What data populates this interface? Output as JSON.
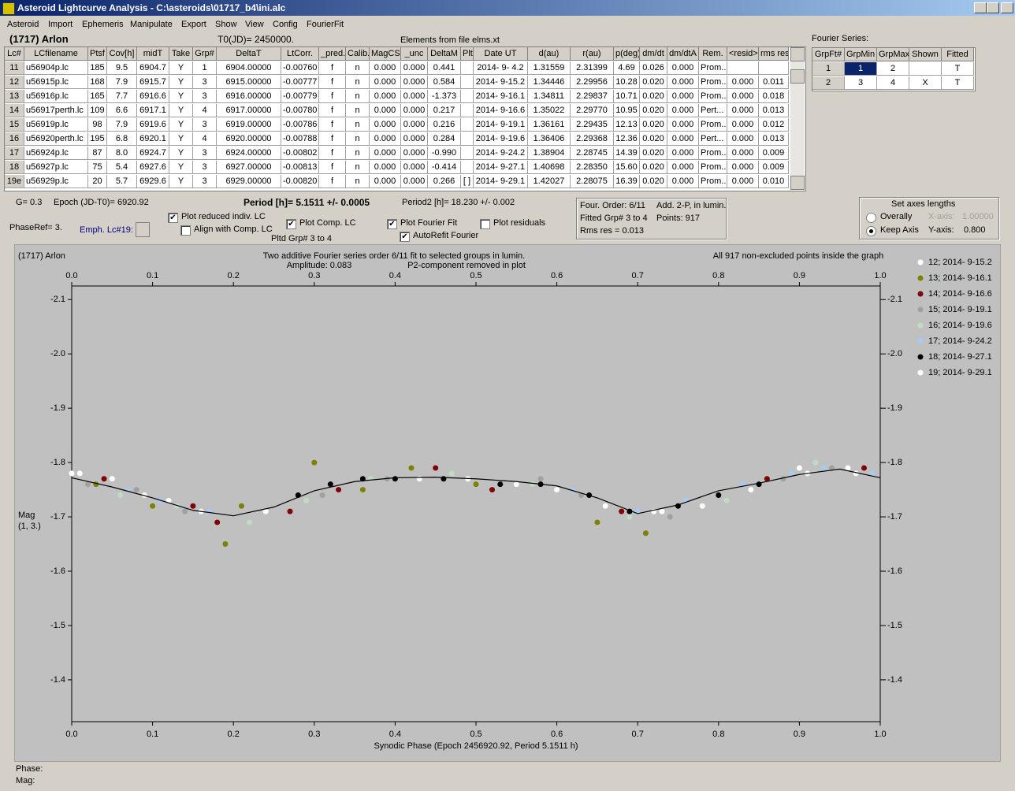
{
  "window": {
    "title": "Asteroid Lightcurve Analysis - C:\\asteroids\\01717_b4\\ini.alc",
    "menu": [
      "Asteroid",
      "Import",
      "Ephemeris",
      "Manipulate",
      "Export",
      "Show",
      "View",
      "Config",
      "FourierFit"
    ]
  },
  "header": {
    "object": "(1717) Arlon",
    "t0": "T0(JD)= 2450000.",
    "elements": "Elements from file elms.xt"
  },
  "lc_table": {
    "columns": [
      "Lc#",
      "LCfilename",
      "Ptsf",
      "Cov[h]",
      "midT",
      "Take",
      "Grp#",
      "DeltaT",
      "LtCorr.",
      "_pred.",
      "Calib.",
      "MagCS",
      "_unc",
      "DeltaM",
      "Plt",
      "Date UT",
      "d(au)",
      "r(au)",
      "p(deg)",
      "dm/dt",
      "dm/dtA",
      "Rem.",
      "<resid>",
      "rms res"
    ],
    "rows": [
      [
        "11",
        "u56904p.lc",
        "185",
        "9.5",
        "6904.7",
        "Y",
        "1",
        "6904.00000",
        "-0.00760",
        "f",
        "n",
        "0.000",
        "0.000",
        "0.441",
        null,
        "2014- 9- 4.2",
        "1.31559",
        "2.31399",
        "4.69",
        "0.026",
        "0.000",
        "Prom...",
        null,
        null
      ],
      [
        "12",
        "u56915p.lc",
        "168",
        "7.9",
        "6915.7",
        "Y",
        "3",
        "6915.00000",
        "-0.00777",
        "f",
        "n",
        "0.000",
        "0.000",
        "0.584",
        null,
        "2014- 9-15.2",
        "1.34446",
        "2.29956",
        "10.28",
        "0.020",
        "0.000",
        "Prom...",
        "0.000",
        "0.011"
      ],
      [
        "13",
        "u56916p.lc",
        "165",
        "7.7",
        "6916.6",
        "Y",
        "3",
        "6916.00000",
        "-0.00779",
        "f",
        "n",
        "0.000",
        "0.000",
        "-1.373",
        null,
        "2014- 9-16.1",
        "1.34811",
        "2.29837",
        "10.71",
        "0.020",
        "0.000",
        "Prom...",
        "0.000",
        "0.018"
      ],
      [
        "14",
        "u56917perth.lc",
        "109",
        "6.6",
        "6917.1",
        "Y",
        "4",
        "6917.00000",
        "-0.00780",
        "f",
        "n",
        "0.000",
        "0.000",
        "0.217",
        null,
        "2014- 9-16.6",
        "1.35022",
        "2.29770",
        "10.95",
        "0.020",
        "0.000",
        "Pert...",
        "0.000",
        "0.013"
      ],
      [
        "15",
        "u56919p.lc",
        "98",
        "7.9",
        "6919.6",
        "Y",
        "3",
        "6919.00000",
        "-0.00786",
        "f",
        "n",
        "0.000",
        "0.000",
        "0.216",
        null,
        "2014- 9-19.1",
        "1.36161",
        "2.29435",
        "12.13",
        "0.020",
        "0.000",
        "Prom...",
        "0.000",
        "0.012"
      ],
      [
        "16",
        "u56920perth.lc",
        "195",
        "6.8",
        "6920.1",
        "Y",
        "4",
        "6920.00000",
        "-0.00788",
        "f",
        "n",
        "0.000",
        "0.000",
        "0.284",
        null,
        "2014- 9-19.6",
        "1.36406",
        "2.29368",
        "12.36",
        "0.020",
        "0.000",
        "Pert...",
        "0.000",
        "0.013"
      ],
      [
        "17",
        "u56924p.lc",
        "87",
        "8.0",
        "6924.7",
        "Y",
        "3",
        "6924.00000",
        "-0.00802",
        "f",
        "n",
        "0.000",
        "0.000",
        "-0.990",
        null,
        "2014- 9-24.2",
        "1.38904",
        "2.28745",
        "14.39",
        "0.020",
        "0.000",
        "Prom...",
        "0.000",
        "0.009"
      ],
      [
        "18",
        "u56927p.lc",
        "75",
        "5.4",
        "6927.6",
        "Y",
        "3",
        "6927.00000",
        "-0.00813",
        "f",
        "n",
        "0.000",
        "0.000",
        "-0.414",
        null,
        "2014- 9-27.1",
        "1.40698",
        "2.28350",
        "15.60",
        "0.020",
        "0.000",
        "Prom...",
        "0.000",
        "0.009"
      ],
      [
        "19e",
        "u56929p.lc",
        "20",
        "5.7",
        "6929.6",
        "Y",
        "3",
        "6929.00000",
        "-0.00820",
        "f",
        "n",
        "0.000",
        "0.000",
        "0.266",
        "[ ]",
        "2014- 9-29.1",
        "1.42027",
        "2.28075",
        "16.39",
        "0.020",
        "0.000",
        "Prom...",
        "0.000",
        "0.010"
      ]
    ]
  },
  "fourier": {
    "label": "Fourier Series:",
    "columns": [
      "GrpFt#",
      "GrpMin",
      "GrpMax",
      "Shown",
      "Fitted"
    ],
    "rows": [
      [
        "1",
        "1",
        "2",
        null,
        "T"
      ],
      [
        "2",
        "3",
        "4",
        "X",
        "T"
      ]
    ]
  },
  "controls": {
    "g": "G= 0.3",
    "epoch": "Epoch (JD-T0)= 6920.92",
    "period": "Period [h]= 5.1511 +/- 0.0005",
    "period2": "Period2 [h]= 18.230 +/- 0.002",
    "phaseref": "PhaseRef= 3.",
    "emph": "Emph. Lc#19:",
    "pltd": "Pltd Grp#  3  to  4",
    "checkboxes": [
      {
        "label": "Plot reduced indiv. LC",
        "checked": true
      },
      {
        "label": "Align with Comp. LC",
        "checked": false
      },
      {
        "label": "Plot Comp. LC",
        "checked": true
      },
      {
        "label": "Plot Fourier Fit",
        "checked": true
      },
      {
        "label": "AutoRefit Fourier",
        "checked": true
      },
      {
        "label": "Plot residuals",
        "checked": false
      }
    ]
  },
  "info_box": {
    "order": "Four. Order:  6/11",
    "add": "Add. 2-P, in lumin.",
    "fitted": "Fitted Grp# 3 to 4",
    "points": "Points: 917",
    "rms": "Rms res    = 0.013"
  },
  "axes_box": {
    "title": "Set axes lengths",
    "options": [
      {
        "label": "Overally",
        "selected": false
      },
      {
        "label": "Keep Axis",
        "selected": true
      }
    ],
    "x_label": "X-axis:",
    "x_value": "1.00000",
    "y_label": "Y-axis:",
    "y_value": "0.800"
  },
  "status": {
    "phase": "Phase:",
    "mag": "Mag:"
  },
  "chart_data": {
    "type": "scatter",
    "subject": "(1717) Arlon",
    "title": "Two additive Fourier series order 6/11 fit to selected groups in lumin.",
    "amplitude": "Amplitude: 0.083",
    "subtitle": "P2-component removed in plot",
    "note": "All 917 non-excluded points inside the graph",
    "xlabel": "Synodic Phase (Epoch 2456920.92, Period 5.1511 h)",
    "ylabel": [
      "Mag",
      "(1, 3.)"
    ],
    "xlim": [
      0,
      1
    ],
    "xticks": [
      {
        "value": 0,
        "label": "0.0"
      },
      0.1,
      0.2,
      0.3,
      0.4,
      0.5,
      0.6,
      0.7,
      0.8,
      0.9,
      {
        "value": 1,
        "label": "1.0"
      }
    ],
    "ylim": [
      -1.323,
      -2.125
    ],
    "yticks": [
      -2.1,
      {
        "value": -2,
        "label": "-2.0"
      },
      -1.9,
      -1.8,
      -1.7,
      -1.6,
      -1.5,
      -1.4
    ],
    "series": [
      {
        "name": "12; 2014- 9-15.2",
        "color": "#ffffff",
        "x": [
          0.01,
          0.05,
          0.12,
          0.55,
          0.6,
          0.72,
          0.78,
          0.84,
          0.9,
          0.97
        ],
        "values": [
          -1.78,
          -1.77,
          -1.73,
          -1.76,
          -1.75,
          -1.71,
          -1.72,
          -1.75,
          -1.79,
          -1.78
        ]
      },
      {
        "name": "13; 2014- 9-16.1",
        "color": "#808000",
        "x": [
          0.03,
          0.1,
          0.19,
          0.21,
          0.3,
          0.36,
          0.42,
          0.5,
          0.65,
          0.71
        ],
        "values": [
          -1.76,
          -1.72,
          -1.65,
          -1.72,
          -1.8,
          -1.75,
          -1.79,
          -1.76,
          -1.69,
          -1.67
        ]
      },
      {
        "name": "14; 2014- 9-16.6",
        "color": "#800000",
        "x": [
          0.04,
          0.15,
          0.18,
          0.27,
          0.33,
          0.45,
          0.52,
          0.68,
          0.86,
          0.98
        ],
        "values": [
          -1.77,
          -1.72,
          -1.69,
          -1.71,
          -1.75,
          -1.79,
          -1.75,
          -1.71,
          -1.77,
          -1.79
        ]
      },
      {
        "name": "15; 2014- 9-19.1",
        "color": "#a0a0a4",
        "x": [
          0.02,
          0.08,
          0.14,
          0.31,
          0.39,
          0.58,
          0.63,
          0.74,
          0.88,
          0.94
        ],
        "values": [
          -1.76,
          -1.75,
          -1.71,
          -1.74,
          -1.77,
          -1.77,
          -1.74,
          -1.7,
          -1.77,
          -1.79
        ]
      },
      {
        "name": "16; 2014- 9-19.6",
        "color": "#c0dcc0",
        "x": [
          0.06,
          0.13,
          0.22,
          0.29,
          0.37,
          0.47,
          0.57,
          0.69,
          0.81,
          0.92
        ],
        "values": [
          -1.74,
          -1.72,
          -1.69,
          -1.73,
          -1.77,
          -1.78,
          -1.76,
          -1.7,
          -1.73,
          -1.8
        ]
      },
      {
        "name": "17; 2014- 9-24.2",
        "color": "#a6caf0",
        "x": [
          0.07,
          0.11,
          0.17,
          0.62,
          0.7,
          0.76,
          0.83,
          0.89,
          0.93,
          0.99
        ],
        "values": [
          -1.75,
          -1.73,
          -1.71,
          -1.75,
          -1.71,
          -1.73,
          -1.76,
          -1.78,
          -1.79,
          -1.78
        ]
      },
      {
        "name": "18; 2014- 9-27.1",
        "color": "#000000",
        "x": [
          0.28,
          0.32,
          0.36,
          0.4,
          0.46,
          0.53,
          0.58,
          0.64,
          0.69,
          0.75,
          0.8,
          0.85
        ],
        "values": [
          -1.74,
          -1.76,
          -1.77,
          -1.77,
          -1.77,
          -1.76,
          -1.76,
          -1.74,
          -1.71,
          -1.72,
          -1.74,
          -1.76
        ]
      },
      {
        "name": "19; 2014- 9-29.1",
        "color": "#ffffff",
        "x": [
          0.0,
          0.09,
          0.16,
          0.24,
          0.43,
          0.49,
          0.66,
          0.73,
          0.91,
          0.96
        ],
        "values": [
          -1.78,
          -1.74,
          -1.71,
          -1.71,
          -1.77,
          -1.77,
          -1.72,
          -1.71,
          -1.78,
          -1.79
        ]
      }
    ],
    "fit": {
      "color": "#000000",
      "x": [
        0,
        0.05,
        0.1,
        0.15,
        0.2,
        0.25,
        0.3,
        0.35,
        0.4,
        0.45,
        0.5,
        0.55,
        0.6,
        0.65,
        0.7,
        0.75,
        0.8,
        0.85,
        0.9,
        0.95,
        1
      ],
      "values": [
        -1.772,
        -1.755,
        -1.735,
        -1.712,
        -1.702,
        -1.718,
        -1.748,
        -1.765,
        -1.772,
        -1.773,
        -1.77,
        -1.765,
        -1.757,
        -1.735,
        -1.706,
        -1.722,
        -1.748,
        -1.762,
        -1.778,
        -1.788,
        -1.772
      ]
    }
  }
}
